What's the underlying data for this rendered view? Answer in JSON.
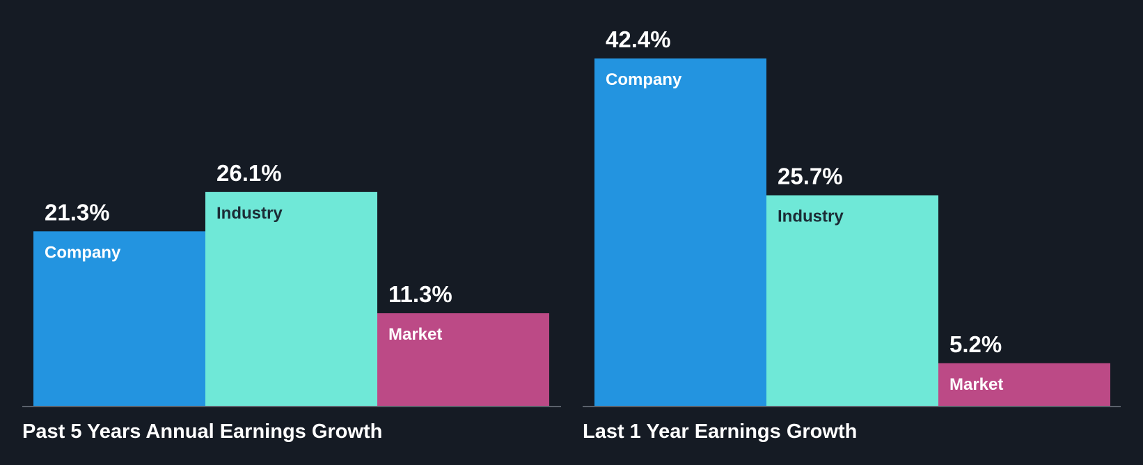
{
  "chart_data": [
    {
      "type": "bar",
      "title": "Past 5 Years Annual Earnings Growth",
      "categories": [
        "Company",
        "Industry",
        "Market"
      ],
      "values": [
        21.3,
        26.1,
        11.3
      ],
      "value_labels": [
        "21.3%",
        "26.1%",
        "11.3%"
      ],
      "colors": [
        "#2394e0",
        "#6fe8d7",
        "#bc4a86"
      ],
      "label_colors": [
        "#ffffff",
        "#1b2b35",
        "#ffffff"
      ],
      "ylim": [
        0,
        42.4
      ],
      "grid": false,
      "legend": "none"
    },
    {
      "type": "bar",
      "title": "Last 1 Year Earnings Growth",
      "categories": [
        "Company",
        "Industry",
        "Market"
      ],
      "values": [
        42.4,
        25.7,
        5.2
      ],
      "value_labels": [
        "42.4%",
        "25.7%",
        "5.2%"
      ],
      "colors": [
        "#2394e0",
        "#6fe8d7",
        "#bc4a86"
      ],
      "label_colors": [
        "#ffffff",
        "#1b2b35",
        "#ffffff"
      ],
      "ylim": [
        0,
        42.4
      ],
      "grid": false,
      "legend": "none"
    }
  ]
}
